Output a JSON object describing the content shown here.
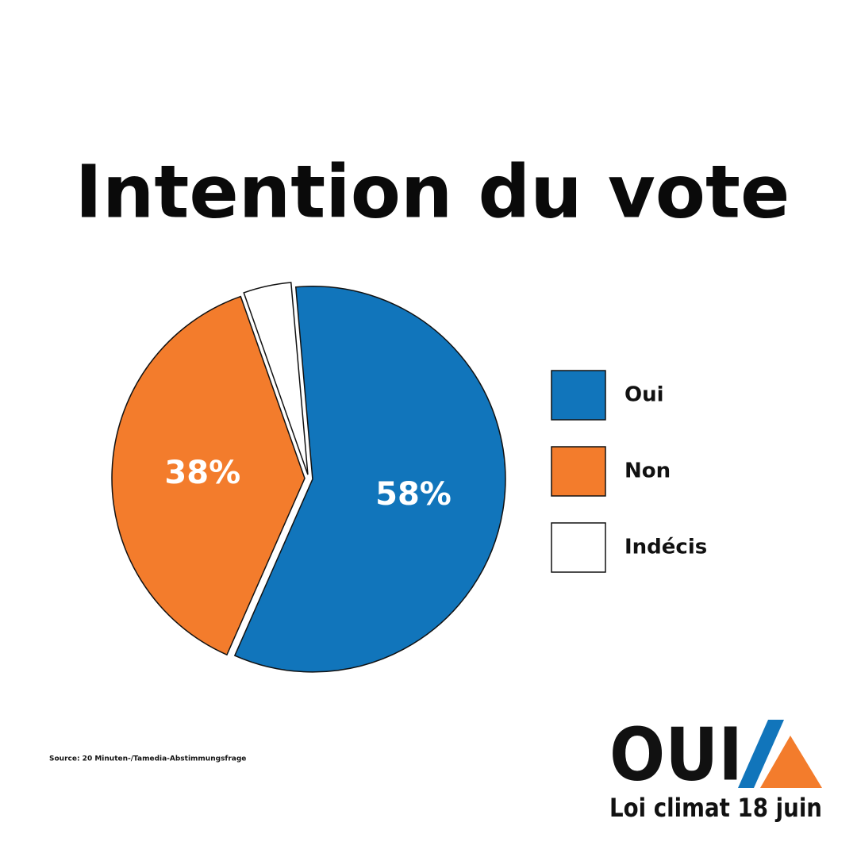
{
  "chart_data": {
    "type": "pie",
    "title": "Intention du vote",
    "categories": [
      "Oui",
      "Non",
      "Indécis"
    ],
    "values": [
      58,
      38,
      4
    ],
    "value_labels": [
      "58%",
      "38%",
      null
    ],
    "colors": [
      "#1175bb",
      "#f37c2c",
      "#ffffff"
    ],
    "source": "Source: 20 Minuten-/Tamedia-Abstimmungsfrage"
  },
  "logo": {
    "word": "OUI",
    "tagline": "Loi climat 18 juin"
  }
}
